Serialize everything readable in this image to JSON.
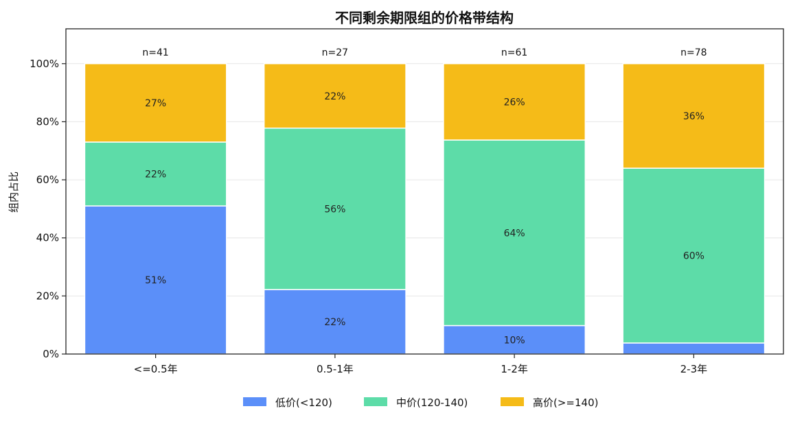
{
  "chart_data": {
    "type": "bar",
    "stacked": true,
    "title": "不同剩余期限组的价格带结构",
    "xlabel": "",
    "ylabel": "组内占比",
    "ylim": [
      0,
      1.12
    ],
    "y_ticks": [
      0,
      0.2,
      0.4,
      0.6,
      0.8,
      1.0
    ],
    "y_tick_labels": [
      "0%",
      "20%",
      "40%",
      "60%",
      "80%",
      "100%"
    ],
    "categories": [
      "<=0.5年",
      "0.5-1年",
      "1-2年",
      "2-3年"
    ],
    "group_counts": [
      "n=41",
      "n=27",
      "n=61",
      "n=78"
    ],
    "series": [
      {
        "name": "低价(<120)",
        "color": "#5b8ff9",
        "values": [
          0.51,
          0.222,
          0.098,
          0.038
        ],
        "labels": [
          "51%",
          "22%",
          "10%",
          ""
        ]
      },
      {
        "name": "中价(120-140)",
        "color": "#5ddca8",
        "values": [
          0.22,
          0.556,
          0.639,
          0.602
        ],
        "labels": [
          "22%",
          "56%",
          "64%",
          "60%"
        ]
      },
      {
        "name": "高价(>=140)",
        "color": "#f5bb18",
        "values": [
          0.27,
          0.222,
          0.263,
          0.36
        ],
        "labels": [
          "27%",
          "22%",
          "26%",
          "36%"
        ]
      }
    ],
    "grid": "horizontal",
    "legend_position": "bottom-center"
  }
}
